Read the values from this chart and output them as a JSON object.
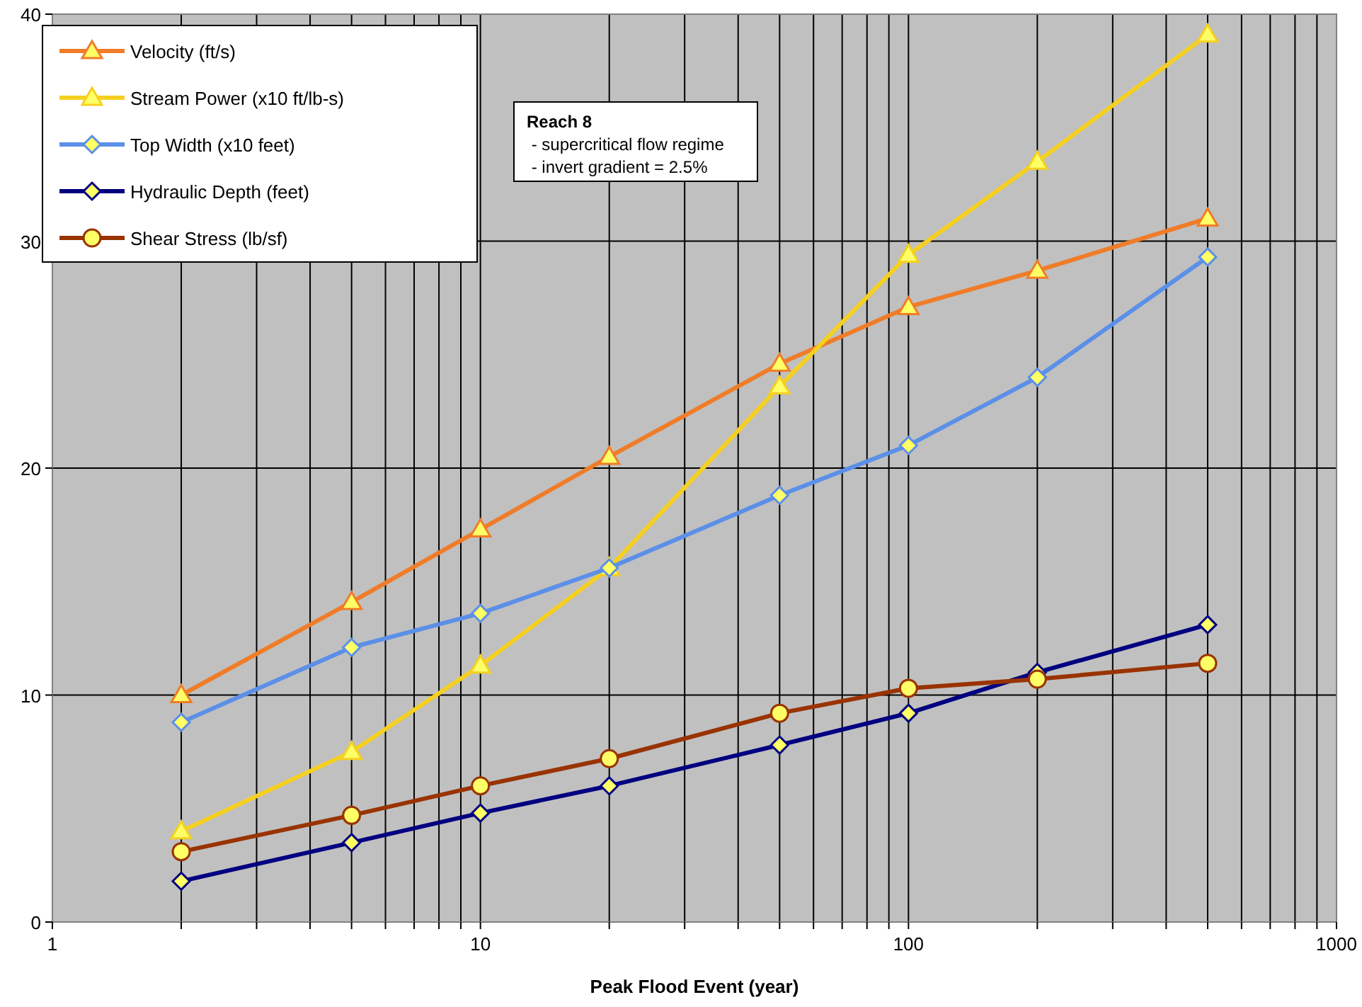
{
  "chart_data": {
    "type": "line",
    "xlabel": "Peak Flood Event (year)",
    "log": "x",
    "grid": true,
    "legend": "top left",
    "line_style": "solid",
    "x": [
      2,
      5,
      10,
      20,
      50,
      100,
      200,
      500
    ],
    "xlim": [
      1,
      1000
    ],
    "xticks": [
      1,
      {
        "value": 2,
        "label": null
      },
      {
        "value": 3,
        "label": null
      },
      {
        "value": 4,
        "label": null
      },
      {
        "value": 5,
        "label": null
      },
      {
        "value": 6,
        "label": null
      },
      {
        "value": 7,
        "label": null
      },
      {
        "value": 8,
        "label": null
      },
      {
        "value": 9,
        "label": null
      },
      10,
      {
        "value": 20,
        "label": null
      },
      {
        "value": 30,
        "label": null
      },
      {
        "value": 40,
        "label": null
      },
      {
        "value": 50,
        "label": null
      },
      {
        "value": 60,
        "label": null
      },
      {
        "value": 70,
        "label": null
      },
      {
        "value": 80,
        "label": null
      },
      {
        "value": 90,
        "label": null
      },
      100,
      {
        "value": 200,
        "label": null
      },
      {
        "value": 300,
        "label": null
      },
      {
        "value": 400,
        "label": null
      },
      {
        "value": 500,
        "label": null
      },
      {
        "value": 600,
        "label": null
      },
      {
        "value": 700,
        "label": null
      },
      {
        "value": 800,
        "label": null
      },
      {
        "value": 900,
        "label": null
      },
      1000
    ],
    "ylim": [
      0,
      40
    ],
    "yticks": [
      0,
      10,
      20,
      30,
      40
    ],
    "annotations": [
      "Reach 8",
      " - supercritical flow regime",
      " - invert gradient = 2.5%"
    ],
    "series": [
      {
        "name": "Velocity (ft/s)",
        "color": "#f07c28",
        "marker": "triangle",
        "values": [
          10.0,
          14.1,
          17.3,
          20.5,
          24.6,
          27.1,
          28.7,
          31.0
        ]
      },
      {
        "name": "Stream Power (x10 ft/lb-s)",
        "color": "#f5d020",
        "marker": "triangle",
        "values": [
          4.0,
          7.5,
          11.3,
          15.6,
          23.6,
          29.4,
          33.5,
          39.1
        ]
      },
      {
        "name": "Top Width (x10 feet)",
        "color": "#5b8fe8",
        "marker": "diamond",
        "values": [
          8.8,
          12.1,
          13.6,
          15.6,
          18.8,
          21.0,
          24.0,
          29.3
        ]
      },
      {
        "name": "Hydraulic Depth (feet)",
        "color": "#000080",
        "marker": "diamond",
        "values": [
          1.8,
          3.5,
          4.8,
          6.0,
          7.8,
          9.2,
          11.0,
          13.1
        ]
      },
      {
        "name": "Shear Stress (lb/sf)",
        "color": "#993300",
        "marker": "circle",
        "values": [
          3.1,
          4.7,
          6.0,
          7.2,
          9.2,
          10.3,
          10.7,
          11.4
        ]
      }
    ]
  }
}
